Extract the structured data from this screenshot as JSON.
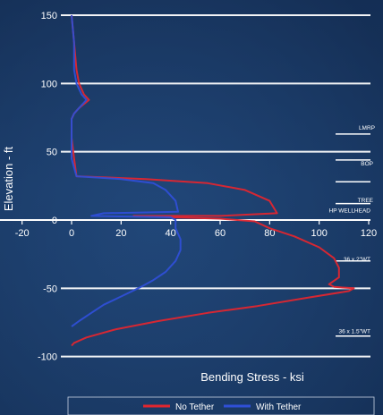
{
  "chart_data": {
    "type": "line",
    "title": "",
    "xlabel": "Bending Stress - ksi",
    "ylabel": "Elevation - ft",
    "xlim": [
      -20,
      120
    ],
    "ylim": [
      -100,
      150
    ],
    "x_ticks": [
      -20,
      0,
      20,
      40,
      60,
      80,
      100,
      120
    ],
    "y_ticks": [
      150,
      100,
      50,
      0,
      -50,
      -100
    ],
    "grid": "horizontal",
    "legend_position": "bottom",
    "series": [
      {
        "name": "No Tether",
        "color": "#e0262f",
        "points": [
          [
            0,
            150
          ],
          [
            1,
            130
          ],
          [
            2,
            110
          ],
          [
            3,
            100
          ],
          [
            5,
            92
          ],
          [
            7,
            88
          ],
          [
            3,
            82
          ],
          [
            1,
            78
          ],
          [
            0,
            74
          ],
          [
            0,
            60
          ],
          [
            1,
            45
          ],
          [
            2,
            32
          ],
          [
            30,
            30
          ],
          [
            55,
            27
          ],
          [
            70,
            22
          ],
          [
            80,
            14
          ],
          [
            83,
            5
          ],
          [
            60,
            3
          ],
          [
            25,
            3
          ],
          [
            40,
            2
          ],
          [
            60,
            1
          ],
          [
            74,
            -1
          ],
          [
            80,
            -6
          ],
          [
            90,
            -12
          ],
          [
            100,
            -20
          ],
          [
            106,
            -28
          ],
          [
            108,
            -35
          ],
          [
            108,
            -42
          ],
          [
            104,
            -47
          ],
          [
            106,
            -49
          ],
          [
            114,
            -50
          ],
          [
            112,
            -52
          ],
          [
            95,
            -57
          ],
          [
            75,
            -63
          ],
          [
            55,
            -68
          ],
          [
            35,
            -74
          ],
          [
            18,
            -80
          ],
          [
            6,
            -86
          ],
          [
            1,
            -90
          ],
          [
            0,
            -92
          ]
        ]
      },
      {
        "name": "With Tether",
        "color": "#2f4fd6",
        "points": [
          [
            0,
            150
          ],
          [
            1,
            130
          ],
          [
            1,
            110
          ],
          [
            2,
            100
          ],
          [
            4,
            92
          ],
          [
            6,
            88
          ],
          [
            3,
            82
          ],
          [
            1,
            78
          ],
          [
            0,
            74
          ],
          [
            0,
            60
          ],
          [
            0,
            45
          ],
          [
            2,
            32
          ],
          [
            20,
            30
          ],
          [
            33,
            27
          ],
          [
            38,
            22
          ],
          [
            42,
            14
          ],
          [
            43,
            6
          ],
          [
            13,
            5
          ],
          [
            8,
            3
          ],
          [
            40,
            2
          ],
          [
            42,
            0
          ],
          [
            42,
            -6
          ],
          [
            44,
            -14
          ],
          [
            44,
            -22
          ],
          [
            42,
            -30
          ],
          [
            38,
            -38
          ],
          [
            33,
            -44
          ],
          [
            28,
            -49
          ],
          [
            20,
            -56
          ],
          [
            13,
            -62
          ],
          [
            8,
            -68
          ],
          [
            3,
            -74
          ],
          [
            0,
            -78
          ]
        ]
      }
    ],
    "annotations": [
      "LMRP",
      "BOP",
      "TREE",
      "HP WELLHEAD",
      "36 x 2\"WT",
      "36 x 1.5\"WT"
    ]
  }
}
